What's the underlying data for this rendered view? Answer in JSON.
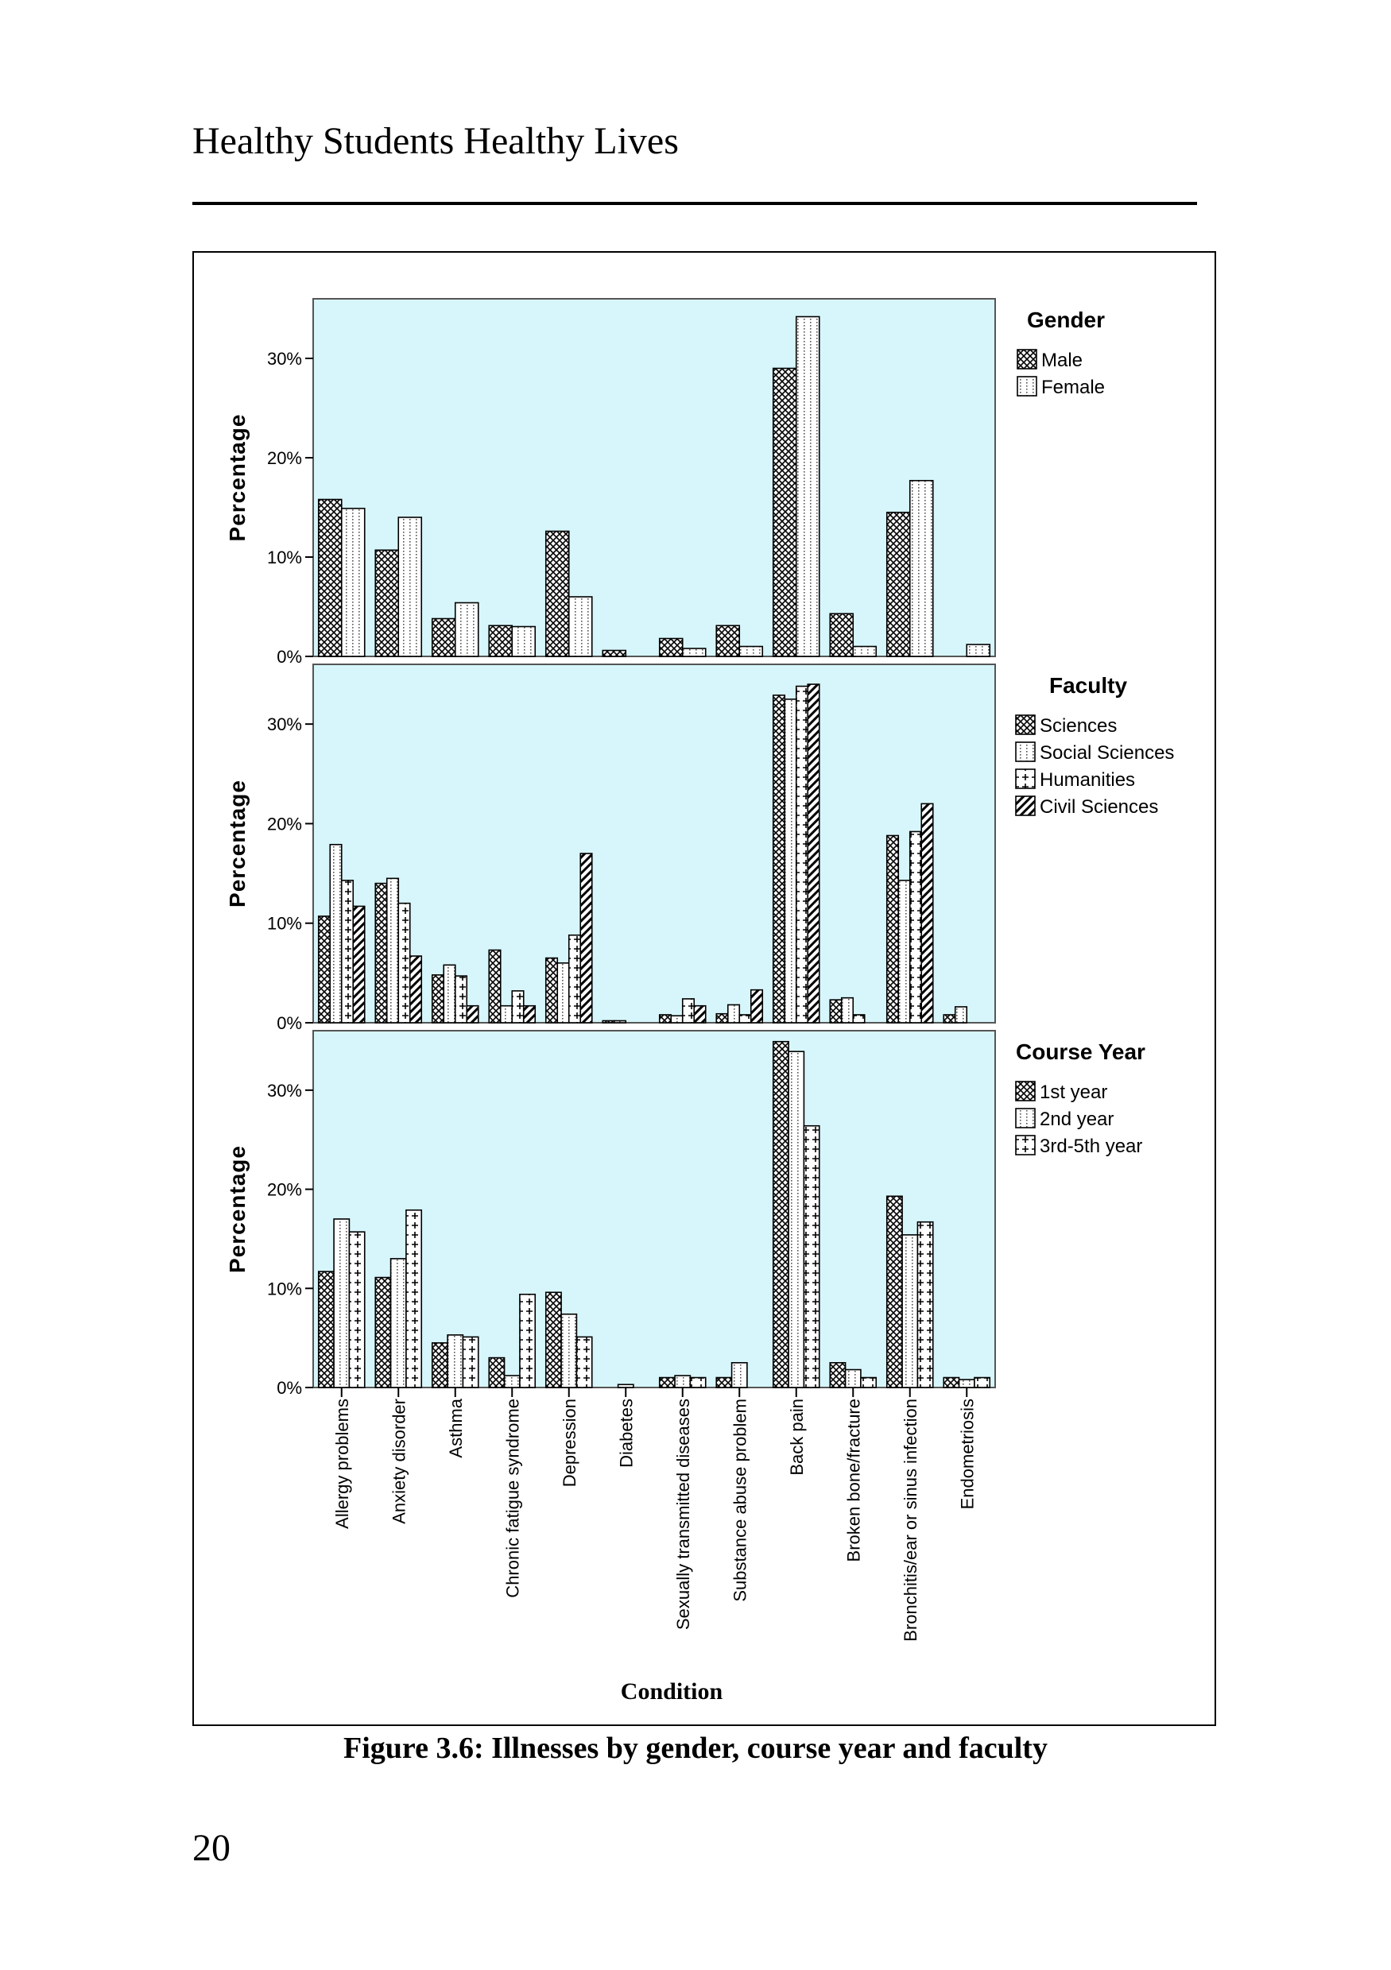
{
  "page": {
    "running_head": "Healthy Students Healthy Lives",
    "caption": "Figure 3.6: Illnesses by gender, course year and faculty",
    "page_number": "20"
  },
  "chart_data": [
    {
      "type": "bar",
      "categories": [
        "Allergy problems",
        "Anxiety disorder",
        "Asthma",
        "Chronic fatigue syndrome",
        "Depression",
        "Diabetes",
        "Sexually transmitted diseases",
        "Substance abuse problem",
        "Back pain",
        "Broken bone/fracture",
        "Bronchitis/ear or sinus infection",
        "Endometriosis"
      ],
      "xlabel": "",
      "ylabel": "Percentage",
      "ylim": [
        0,
        36
      ],
      "yticks": [
        "0%",
        "10%",
        "20%",
        "30%"
      ],
      "legend_title": "Gender",
      "legend_position": "right",
      "series": [
        {
          "name": "Male",
          "pattern": "crosshatch",
          "values": [
            15.8,
            10.7,
            3.8,
            3.1,
            12.6,
            0.6,
            1.8,
            3.1,
            29.0,
            4.3,
            14.5,
            0.0
          ]
        },
        {
          "name": "Female",
          "pattern": "dotted",
          "values": [
            14.9,
            14.0,
            5.4,
            3.0,
            6.0,
            0.0,
            0.8,
            1.0,
            34.2,
            1.0,
            17.7,
            1.2
          ]
        }
      ]
    },
    {
      "type": "bar",
      "categories": [
        "Allergy problems",
        "Anxiety disorder",
        "Asthma",
        "Chronic fatigue syndrome",
        "Depression",
        "Diabetes",
        "Sexually transmitted diseases",
        "Substance abuse problem",
        "Back pain",
        "Broken bone/fracture",
        "Bronchitis/ear or sinus infection",
        "Endometriosis"
      ],
      "xlabel": "",
      "ylabel": "Percentage",
      "ylim": [
        0,
        36
      ],
      "yticks": [
        "0%",
        "10%",
        "20%",
        "30%"
      ],
      "legend_title": "Faculty",
      "legend_position": "right",
      "series": [
        {
          "name": "Sciences",
          "pattern": "crosshatch",
          "values": [
            10.7,
            14.0,
            4.8,
            7.3,
            6.5,
            0.2,
            0.8,
            0.9,
            32.9,
            2.3,
            18.8,
            0.8
          ]
        },
        {
          "name": "Social Sciences",
          "pattern": "dotted",
          "values": [
            17.9,
            14.5,
            5.8,
            1.7,
            6.0,
            0.2,
            0.7,
            1.8,
            32.5,
            2.5,
            14.3,
            1.6
          ]
        },
        {
          "name": "Humanities",
          "pattern": "plus",
          "values": [
            14.3,
            12.0,
            4.7,
            3.2,
            8.8,
            0.0,
            2.4,
            0.8,
            33.8,
            0.8,
            19.2,
            0.0
          ]
        },
        {
          "name": "Civil Sciences",
          "pattern": "diagonal",
          "values": [
            11.7,
            6.7,
            1.7,
            1.7,
            17.0,
            0.0,
            1.7,
            3.3,
            34.0,
            0.0,
            22.0,
            0.0
          ]
        }
      ]
    },
    {
      "type": "bar",
      "categories": [
        "Allergy problems",
        "Anxiety disorder",
        "Asthma",
        "Chronic fatigue syndrome",
        "Depression",
        "Diabetes",
        "Sexually transmitted diseases",
        "Substance abuse problem",
        "Back pain",
        "Broken bone/fracture",
        "Bronchitis/ear or sinus infection",
        "Endometriosis"
      ],
      "xlabel": "Condition",
      "ylabel": "Percentage",
      "ylim": [
        0,
        36
      ],
      "yticks": [
        "0%",
        "10%",
        "20%",
        "30%"
      ],
      "legend_title": "Course Year",
      "legend_position": "right",
      "series": [
        {
          "name": "1st year",
          "pattern": "crosshatch",
          "values": [
            11.7,
            11.1,
            4.5,
            3.0,
            9.6,
            0.0,
            1.0,
            1.0,
            34.9,
            2.5,
            19.3,
            1.0
          ]
        },
        {
          "name": "2nd year",
          "pattern": "dotted",
          "values": [
            17.0,
            13.0,
            5.3,
            1.2,
            7.4,
            0.3,
            1.2,
            2.5,
            33.9,
            1.8,
            15.4,
            0.8
          ]
        },
        {
          "name": "3rd-5th year",
          "pattern": "plus",
          "values": [
            15.7,
            17.9,
            5.1,
            9.4,
            5.1,
            0.0,
            1.0,
            0.0,
            26.4,
            1.0,
            16.7,
            1.0
          ]
        }
      ]
    }
  ]
}
